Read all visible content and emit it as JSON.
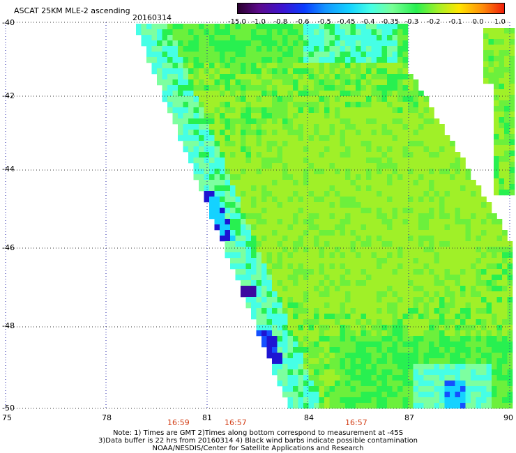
{
  "header": {
    "title": "ASCAT 25KM MLE-2 ascending",
    "date": "20160314"
  },
  "colorbar": {
    "labels": [
      "-15.0",
      "-1.0",
      "-0.8",
      "-0.6",
      "-0.5",
      "-0.45",
      "-0.4",
      "-0.35",
      "-0.3",
      "-0.2",
      "-0.1",
      "0.0",
      "1.0"
    ],
    "colors": [
      "#2a002e",
      "#5c0a8c",
      "#3c14d2",
      "#0a3cff",
      "#1496ff",
      "#14d2ff",
      "#46ffe6",
      "#78ff96",
      "#28f050",
      "#a0f028",
      "#ffe600",
      "#ff8c0a",
      "#f01e0a"
    ]
  },
  "map": {
    "lat_labels": [
      "-40",
      "-42",
      "-44",
      "-46",
      "-48",
      "-50"
    ],
    "lon_labels": [
      "75",
      "78",
      "81",
      "84",
      "87",
      "90"
    ],
    "swath_times": [
      "16:59",
      "16:57",
      "16:57"
    ],
    "palette": {
      "lime": "#a0f028",
      "green": "#6cf03c",
      "bright_green": "#28f050",
      "mint": "#7dffa0",
      "cyan": "#46ffe6",
      "sky": "#14d2ff",
      "blue": "#1450ff",
      "deep_blue": "#1e14d2",
      "violet": "#3c0aa0"
    }
  },
  "notes": {
    "line1": "Note: 1) Times are GMT 2)Times along bottom correspond to measurement at -45S",
    "line2": "3)Data buffer is 22 hrs from 20160314 4) Black wind barbs indicate possible contamination",
    "line3": "NOAA/NESDIS/Center for Satellite Applications and Research"
  }
}
